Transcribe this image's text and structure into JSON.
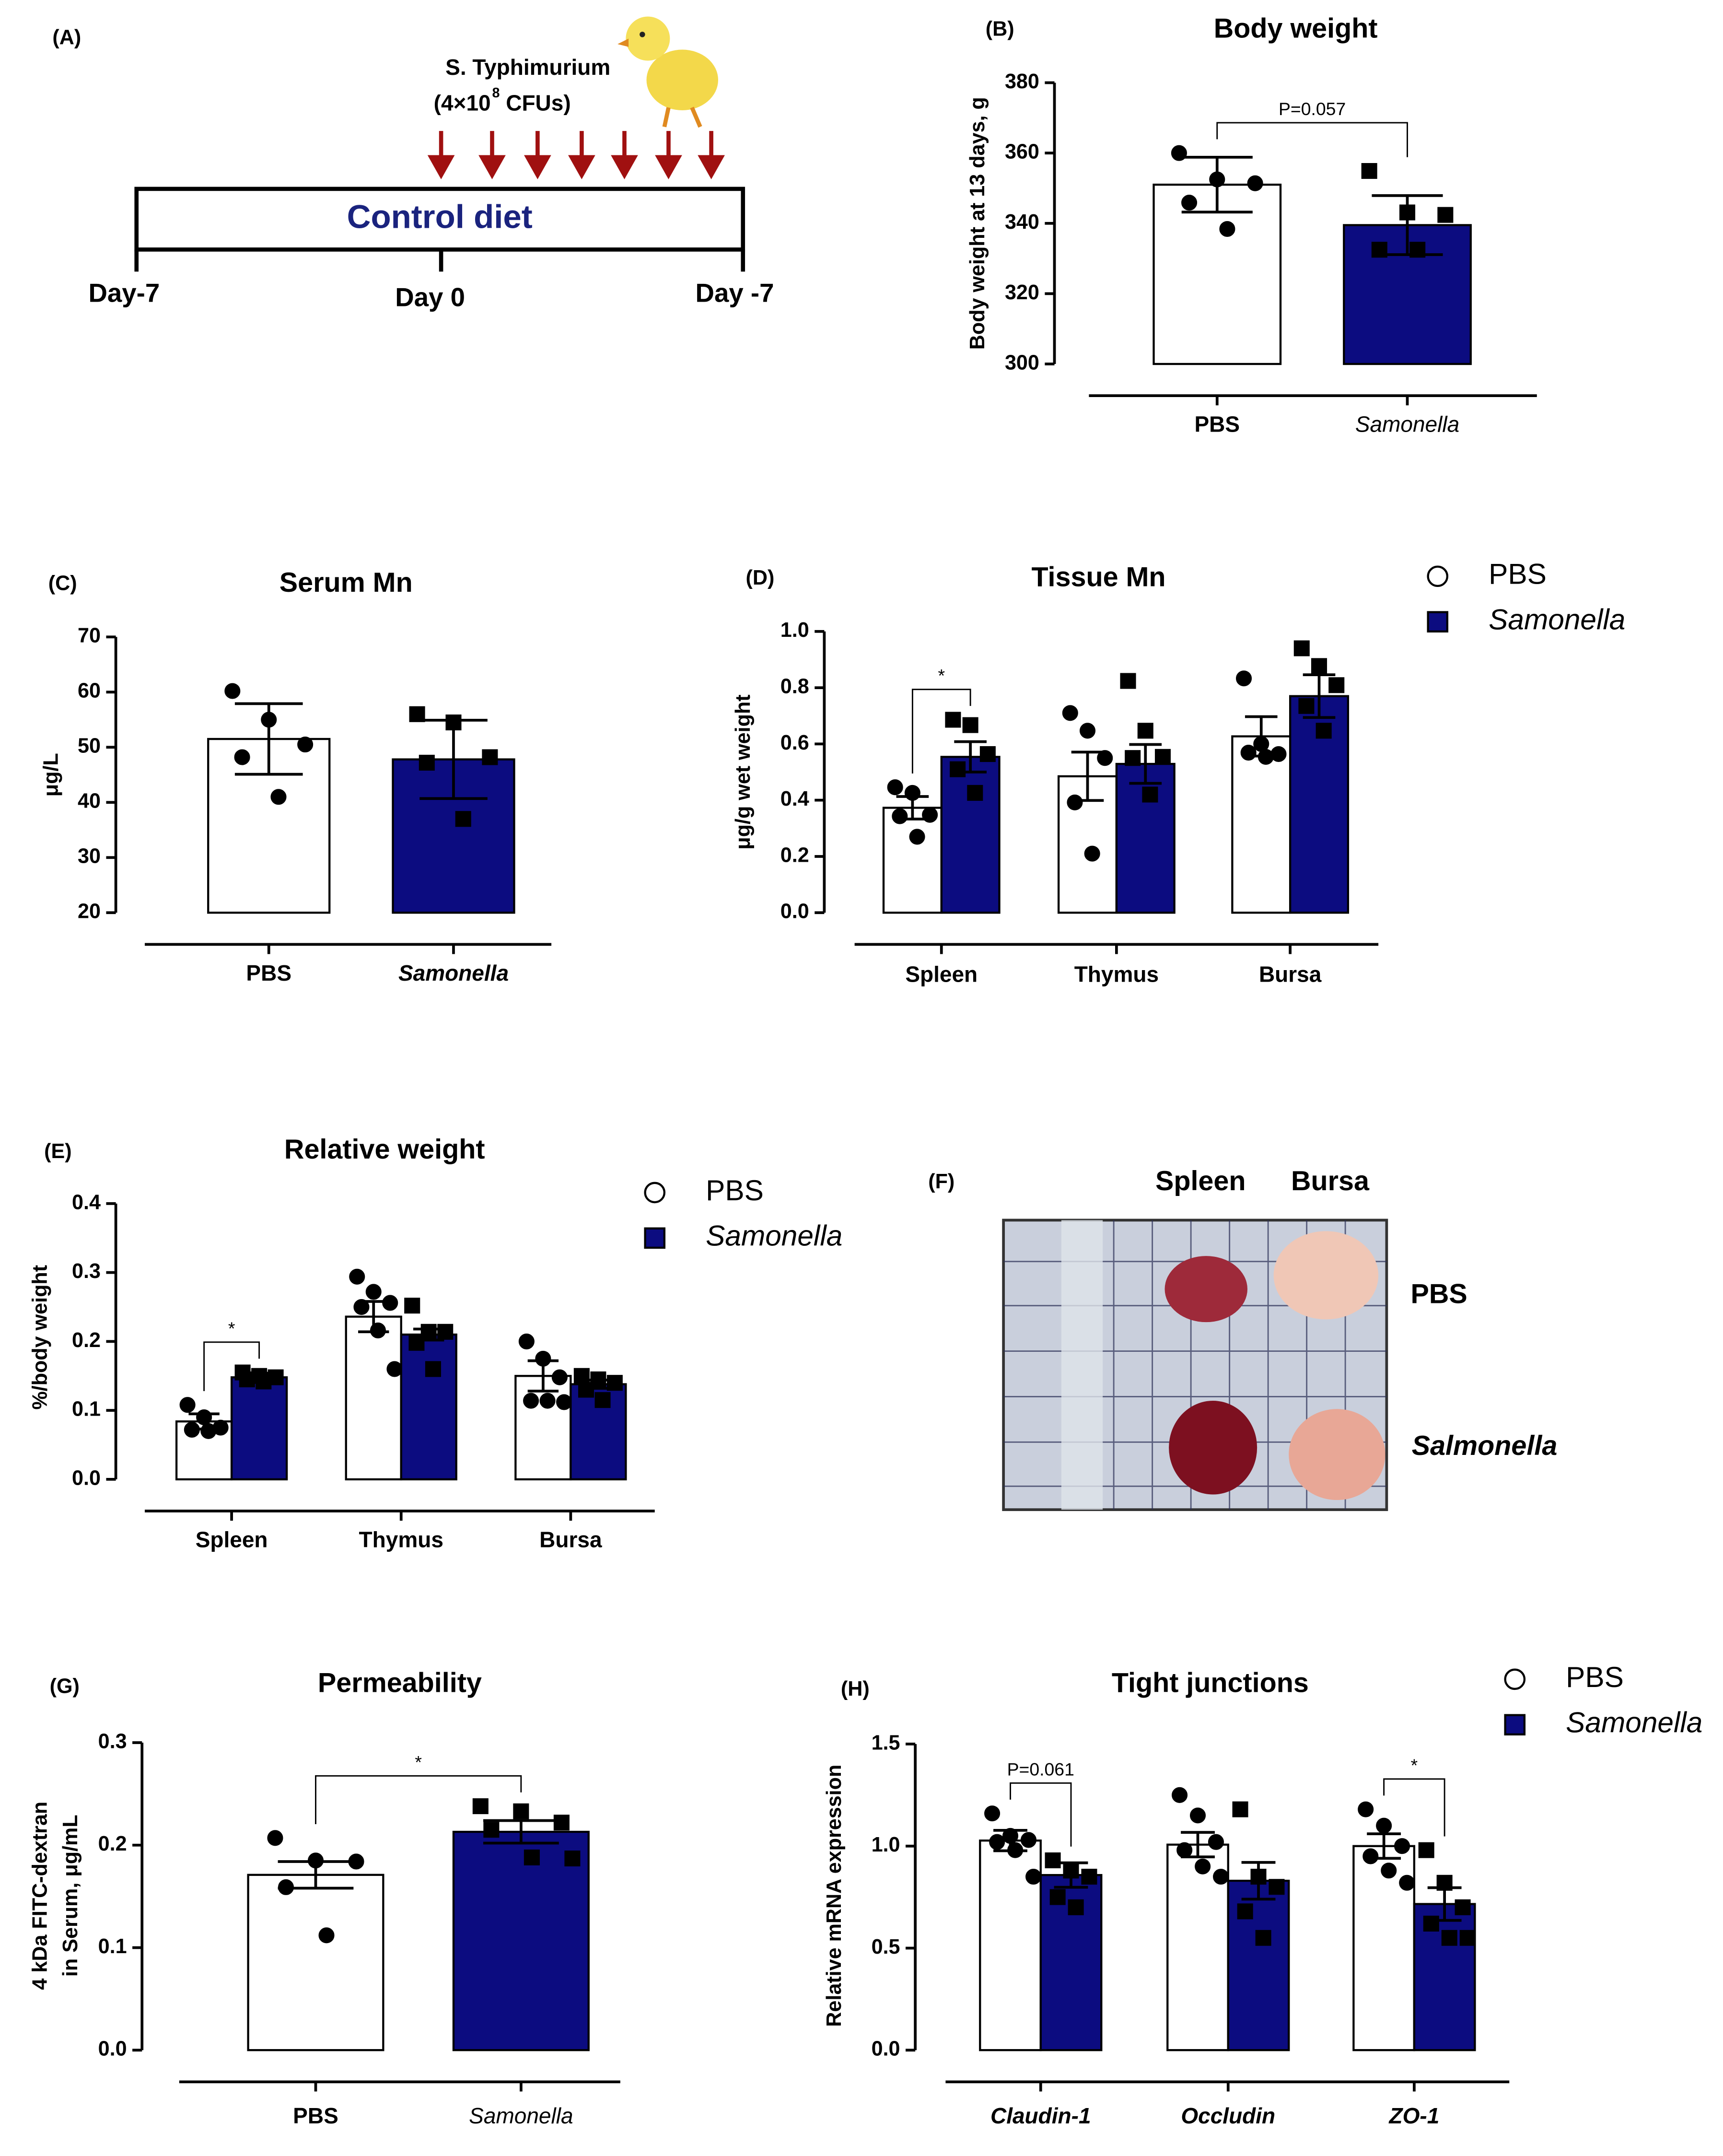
{
  "timeline": {
    "panel_label": "(A)",
    "agent": "S. Typhimurium",
    "dose": "(4×10",
    "dose_exp": "8",
    "dose_unit": "CFUs)",
    "diet": "Control diet",
    "start": "Day-7",
    "challenge": "Day 0",
    "end": "Day -7"
  },
  "photo": {
    "panel_label": "(F)",
    "columns": [
      "Spleen",
      "Bursa"
    ],
    "rows": [
      "PBS",
      "Salmonella"
    ]
  },
  "chart_data": [
    {
      "type": "bar",
      "panel_label": "(B)",
      "title": "Body weight",
      "ylabel": "Body weight at 13 days, g",
      "categories": [
        "PBS",
        "Samonella"
      ],
      "values": [
        351,
        339.5
      ],
      "errors": [
        7.8,
        8.4
      ],
      "points": [
        [
          360,
          352.5,
          351.4,
          345.9,
          338.4
        ],
        [
          354.9,
          343.1,
          342.4,
          332.5,
          332.5
        ]
      ],
      "colors": [
        "#ffffff",
        "#0c0c80"
      ],
      "markers": [
        "circle",
        "square"
      ],
      "ylim": [
        300,
        380
      ],
      "yticks": [
        300,
        320,
        340,
        360,
        380
      ],
      "annotations": [
        {
          "text": "P=0.057"
        }
      ]
    },
    {
      "type": "bar",
      "panel_label": "(C)",
      "title": "Serum Mn",
      "ylabel": "μg/L",
      "categories": [
        "PBS",
        "Samonella"
      ],
      "values": [
        51.5,
        47.8
      ],
      "errors": [
        6.4,
        7.1
      ],
      "points": [
        [
          60.2,
          55,
          50.5,
          48.2,
          41
        ],
        [
          56,
          54.5,
          48.2,
          47.2,
          37
        ]
      ],
      "colors": [
        "#ffffff",
        "#0c0c80"
      ],
      "markers": [
        "circle",
        "square"
      ],
      "ylim": [
        20,
        70
      ],
      "yticks": [
        20,
        30,
        40,
        50,
        60,
        70
      ]
    },
    {
      "type": "bar",
      "panel_label": "(D)",
      "title": "Tissue Mn",
      "ylabel": "μg/g wet weight",
      "categories": [
        "Spleen",
        "Thymus",
        "Bursa"
      ],
      "series": [
        {
          "name": "PBS",
          "color": "#ffffff",
          "marker": "circle",
          "values": [
            0.373,
            0.485,
            0.627
          ],
          "errors": [
            0.04,
            0.086,
            0.07
          ],
          "points": [
            [
              0.446,
              0.426,
              0.348,
              0.343,
              0.27
            ],
            [
              0.71,
              0.647,
              0.55,
              0.392,
              0.21
            ],
            [
              0.833,
              0.6,
              0.564,
              0.569,
              0.554
            ]
          ]
        },
        {
          "name": "Samonella",
          "color": "#0c0c80",
          "marker": "square",
          "values": [
            0.554,
            0.529,
            0.77
          ],
          "errors": [
            0.054,
            0.069,
            0.076
          ],
          "points": [
            [
              0.686,
              0.667,
              0.564,
              0.51,
              0.426
            ],
            [
              0.824,
              0.647,
              0.554,
              0.55,
              0.42
            ],
            [
              0.94,
              0.877,
              0.809,
              0.735,
              0.647
            ]
          ]
        }
      ],
      "ylim": [
        0,
        1
      ],
      "yticks": [
        {
          "value": 0,
          "label": "0.0"
        },
        0.2,
        0.4,
        0.6,
        0.8,
        {
          "value": 1,
          "label": "1.0"
        }
      ],
      "legend": "right",
      "annotations": [
        {
          "text": "*",
          "category": 0
        }
      ]
    },
    {
      "type": "bar",
      "panel_label": "(E)",
      "title": "Relative weight",
      "ylabel": "%/body weight",
      "categories": [
        "Spleen",
        "Thymus",
        "Bursa"
      ],
      "series": [
        {
          "name": "PBS",
          "color": "#ffffff",
          "marker": "circle",
          "values": [
            0.084,
            0.236,
            0.15
          ],
          "errors": [
            0.011,
            0.022,
            0.022
          ],
          "points": [
            [
              0.108,
              0.09,
              0.075,
              0.072,
              0.07
            ],
            [
              0.294,
              0.272,
              0.256,
              0.25,
              0.216,
              0.16
            ],
            [
              0.2,
              0.175,
              0.148,
              0.114,
              0.114,
              0.112
            ]
          ]
        },
        {
          "name": "Samonella",
          "color": "#0c0c80",
          "marker": "square",
          "values": [
            0.148,
            0.21,
            0.138
          ],
          "errors": [
            0.006,
            0.008,
            0.006
          ],
          "points": [
            [
              0.155,
              0.15,
              0.148,
              0.145,
              0.142
            ],
            [
              0.252,
              0.214,
              0.214,
              0.198,
              0.16
            ],
            [
              0.15,
              0.145,
              0.14,
              0.13,
              0.115
            ]
          ]
        }
      ],
      "ylim": [
        0,
        0.4
      ],
      "yticks": [
        {
          "value": 0,
          "label": "0.0"
        },
        0.1,
        0.2,
        0.3,
        0.4
      ],
      "legend": "right",
      "annotations": [
        {
          "text": "*",
          "category": 0
        }
      ]
    },
    {
      "type": "bar",
      "panel_label": "(G)",
      "title": "Permeability",
      "ylabel": [
        "4 kDa FITC-dextran",
        "in Serum, μg/mL"
      ],
      "categories": [
        "PBS",
        "Samonella"
      ],
      "values": [
        0.171,
        0.213
      ],
      "errors": [
        0.013,
        0.011
      ],
      "points": [
        [
          0.207,
          0.185,
          0.184,
          0.159,
          0.112
        ],
        [
          0.238,
          0.233,
          0.222,
          0.215,
          0.188,
          0.187
        ]
      ],
      "colors": [
        "#ffffff",
        "#0c0c80"
      ],
      "markers": [
        "circle",
        "square"
      ],
      "ylim": [
        0,
        0.3
      ],
      "yticks": [
        {
          "value": 0,
          "label": "0.0"
        },
        0.1,
        0.2,
        0.3
      ],
      "annotations": [
        {
          "text": "*"
        }
      ]
    },
    {
      "type": "bar",
      "panel_label": "(H)",
      "title": "Tight junctions",
      "ylabel": "Relative mRNA expression",
      "categories": [
        "Claudin-1",
        "Occludin",
        "ZO-1"
      ],
      "series": [
        {
          "name": "PBS",
          "color": "#ffffff",
          "marker": "circle",
          "values": [
            1.027,
            1.007,
            1.0
          ],
          "errors": [
            0.05,
            0.06,
            0.06
          ],
          "points": [
            [
              1.16,
              1.05,
              1.03,
              1.02,
              0.98,
              0.85
            ],
            [
              1.25,
              1.15,
              1.02,
              0.98,
              0.9,
              0.85
            ],
            [
              1.18,
              1.1,
              1.0,
              0.95,
              0.88,
              0.82
            ]
          ]
        },
        {
          "name": "Samonella",
          "color": "#0c0c80",
          "marker": "square",
          "values": [
            0.858,
            0.83,
            0.716
          ],
          "errors": [
            0.06,
            0.09,
            0.08
          ],
          "points": [
            [
              0.93,
              0.88,
              0.85,
              0.75,
              0.7
            ],
            [
              1.18,
              0.85,
              0.8,
              0.68,
              0.55
            ],
            [
              0.98,
              0.82,
              0.7,
              0.62,
              0.55,
              0.55
            ]
          ]
        }
      ],
      "ylim": [
        0,
        1.5
      ],
      "yticks": [
        {
          "value": 0,
          "label": "0.0"
        },
        0.5,
        {
          "value": 1,
          "label": "1.0"
        },
        1.5
      ],
      "legend": "right",
      "annotations": [
        {
          "text": "P=0.061",
          "category": 0
        },
        {
          "text": "*",
          "category": 2
        }
      ]
    }
  ]
}
